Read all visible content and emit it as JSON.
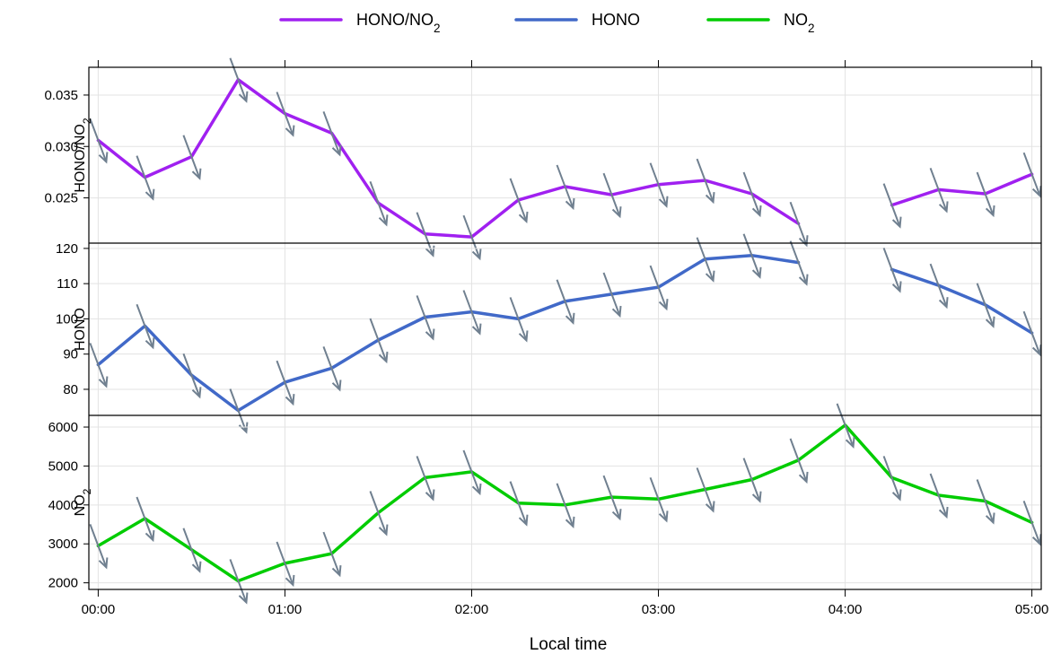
{
  "chart_data": {
    "type": "line",
    "xlabel": "Local time",
    "x_ticks": [
      "00:00",
      "01:00",
      "02:00",
      "03:00",
      "04:00",
      "05:00"
    ],
    "x_domain_hours": [
      -0.05,
      5.05
    ],
    "x_hours": [
      0,
      0.25,
      0.5,
      0.75,
      1,
      1.25,
      1.5,
      1.75,
      2,
      2.25,
      2.5,
      2.75,
      3,
      3.25,
      3.5,
      3.75,
      4,
      4.25,
      4.5,
      4.75,
      5
    ],
    "legend": {
      "placement": "top-center",
      "entries": [
        {
          "series": "ratio",
          "label": "HONO/NO",
          "subscript": "2"
        },
        {
          "series": "hono",
          "label": "HONO",
          "subscript": ""
        },
        {
          "series": "no2",
          "label": "NO",
          "subscript": "2"
        }
      ]
    },
    "panels": [
      {
        "key": "ratio",
        "name": "HONO/NO2",
        "ylabel": "HONO/NO",
        "ylabel_sub": "2",
        "color": "#a020f0",
        "ylim": [
          0.0206,
          0.0377
        ],
        "y_ticks": [
          0.025,
          0.03,
          0.035
        ],
        "y_tick_labels": [
          "0.025",
          "0.030",
          "0.035"
        ],
        "values": [
          0.0306,
          0.027,
          0.029,
          0.0365,
          0.0332,
          0.0313,
          0.0245,
          0.0215,
          0.0212,
          0.0248,
          0.0261,
          0.0253,
          0.0263,
          0.0267,
          0.0254,
          0.0225,
          null,
          0.0243,
          0.0258,
          0.0254,
          0.0273
        ]
      },
      {
        "key": "hono",
        "name": "HONO",
        "ylabel": "HONO",
        "ylabel_sub": "",
        "color": "#4169c8",
        "ylim": [
          72.6,
          121.5
        ],
        "y_ticks": [
          80,
          90,
          100,
          110,
          120
        ],
        "y_tick_labels": [
          "80",
          "90",
          "100",
          "110",
          "120"
        ],
        "values": [
          87,
          98,
          84,
          74,
          82,
          86,
          94,
          100.5,
          102,
          100,
          105,
          107,
          109,
          117,
          118,
          116,
          null,
          114,
          109.5,
          104,
          96
        ]
      },
      {
        "key": "no2",
        "name": "NO2",
        "ylabel": "NO",
        "ylabel_sub": "2",
        "color": "#00cc00",
        "ylim": [
          1830,
          6300
        ],
        "y_ticks": [
          2000,
          3000,
          4000,
          5000,
          6000
        ],
        "y_tick_labels": [
          "2000",
          "3000",
          "4000",
          "5000",
          "6000"
        ],
        "values": [
          2950,
          3650,
          2850,
          2050,
          2500,
          2750,
          3800,
          4700,
          4850,
          4050,
          4000,
          4200,
          4150,
          4400,
          4650,
          5150,
          6050,
          4700,
          4250,
          4100,
          3550
        ]
      }
    ],
    "arrows": {
      "color": "#708090",
      "direction_hint": "south-east (pointing down-right)"
    }
  }
}
